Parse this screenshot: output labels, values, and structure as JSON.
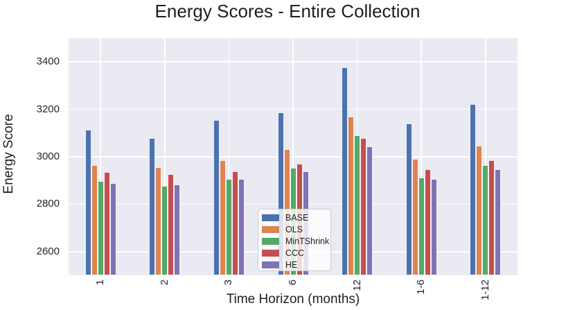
{
  "chart_data": {
    "type": "bar",
    "title": "Energy Scores - Entire Collection",
    "xlabel": "Time Horizon (months)",
    "ylabel": "Energy Score",
    "categories": [
      "1",
      "2",
      "3",
      "6",
      "12",
      "1-6",
      "1-12"
    ],
    "series": [
      {
        "name": "BASE",
        "color": "#4C72B0",
        "values": [
          3113,
          3079,
          3156,
          3186,
          3378,
          3140,
          3222
        ]
      },
      {
        "name": "OLS",
        "color": "#DD8452",
        "values": [
          2966,
          2957,
          2984,
          3032,
          3171,
          2991,
          3048
        ]
      },
      {
        "name": "MinTShrink",
        "color": "#55A868",
        "values": [
          2898,
          2877,
          2907,
          2952,
          3091,
          2912,
          2965
        ]
      },
      {
        "name": "CCC",
        "color": "#C44E52",
        "values": [
          2937,
          2927,
          2939,
          2970,
          3080,
          2947,
          2985
        ]
      },
      {
        "name": "HE",
        "color": "#8172B3",
        "values": [
          2890,
          2883,
          2905,
          2938,
          3044,
          2907,
          2948
        ]
      }
    ],
    "ylim": [
      2500,
      3500
    ],
    "yticks": [
      "2600",
      "2800",
      "3000",
      "3200",
      "3400"
    ],
    "grid": true,
    "legend_position": "lower-center-inside",
    "plot_bg_color": "#EAEAF2",
    "grid_color": "#FFFFFF"
  }
}
